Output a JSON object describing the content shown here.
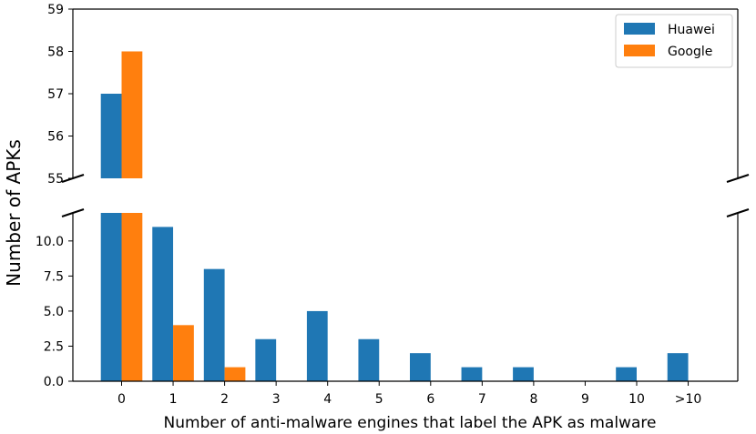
{
  "chart_data": {
    "type": "bar",
    "broken_axis": true,
    "categories": [
      "0",
      "1",
      "2",
      "3",
      "4",
      "5",
      "6",
      "7",
      "8",
      "9",
      "10",
      ">10"
    ],
    "series": [
      {
        "name": "Huawei",
        "color": "#1f77b4",
        "values": [
          57,
          11,
          8,
          3,
          5,
          3,
          2,
          1,
          1,
          0,
          1,
          2
        ]
      },
      {
        "name": "Google",
        "color": "#ff7f0e",
        "values": [
          58,
          4,
          1,
          0,
          0,
          0,
          0,
          0,
          0,
          0,
          0,
          0
        ]
      }
    ],
    "upper_panel": {
      "ylim": [
        55,
        59
      ],
      "ticks": [
        "55",
        "56",
        "57",
        "58",
        "59"
      ]
    },
    "lower_panel": {
      "ylim": [
        0,
        12
      ],
      "ticks": [
        "0.0",
        "2.5",
        "5.0",
        "7.5",
        "10.0"
      ]
    },
    "xlabel": "Number of anti-malware engines that label the APK as malware",
    "ylabel": "Number of APKs",
    "legend": {
      "position": "top-right",
      "entries": [
        "Huawei",
        "Google"
      ]
    }
  }
}
